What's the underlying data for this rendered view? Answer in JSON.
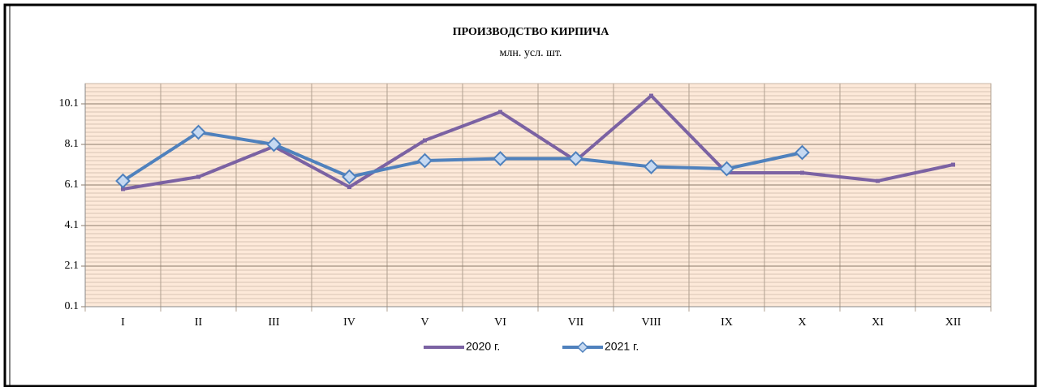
{
  "chart_data": {
    "type": "line",
    "title": "ПРОИЗВОДСТВО КИРПИЧА",
    "subtitle": "млн. усл. шт.",
    "categories": [
      "I",
      "II",
      "III",
      "IV",
      "V",
      "VI",
      "VII",
      "VIII",
      "IX",
      "X",
      "XI",
      "XII"
    ],
    "series": [
      {
        "name": "2020 г.",
        "color": "#7b62a3",
        "values": [
          5.9,
          6.5,
          8.0,
          6.0,
          8.3,
          9.7,
          7.3,
          10.5,
          6.7,
          6.7,
          6.3,
          7.1
        ]
      },
      {
        "name": "2021 г.",
        "color": "#4f81bd",
        "values": [
          6.3,
          8.7,
          8.1,
          6.5,
          7.3,
          7.4,
          7.4,
          7.0,
          6.9,
          7.7,
          null,
          null
        ]
      }
    ],
    "ylim": [
      0.1,
      11.1
    ],
    "yticks": [
      0.1,
      2.1,
      4.1,
      6.1,
      8.1,
      10.1
    ],
    "grid": true,
    "legend": "bottom"
  }
}
